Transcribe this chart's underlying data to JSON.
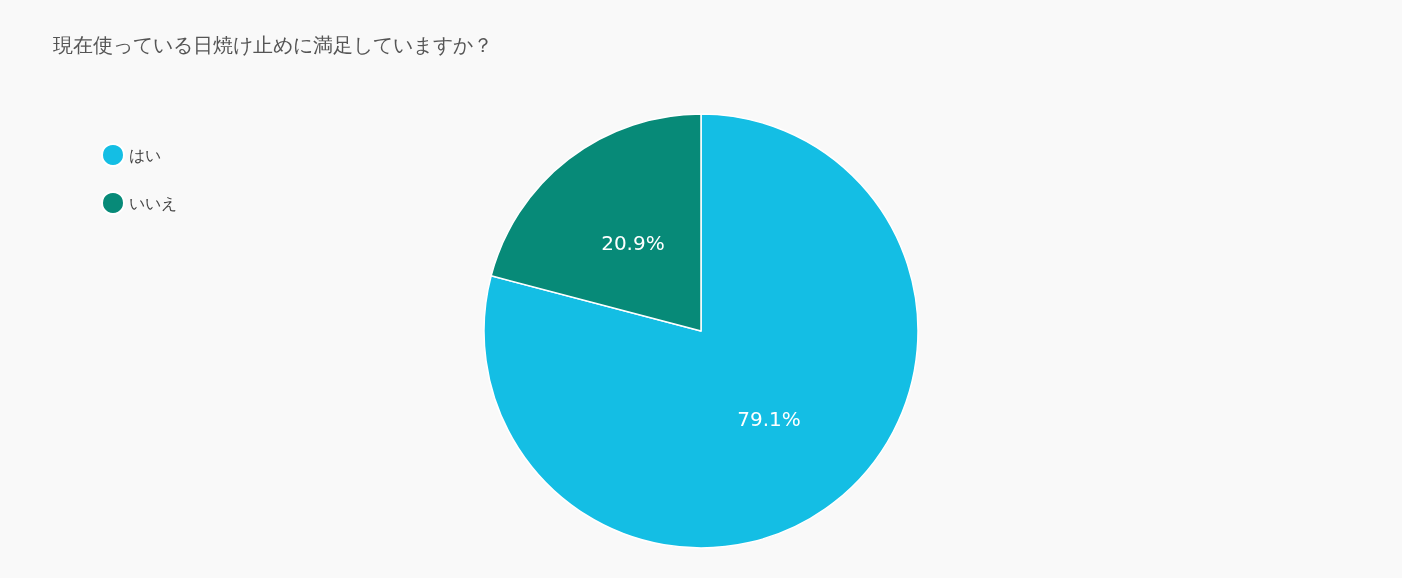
{
  "chart_data": {
    "type": "pie",
    "title": "現在使っている日焼け止めに満足していますか？",
    "categories": [
      "はい",
      "いいえ"
    ],
    "values": [
      79.1,
      20.9
    ],
    "colors": [
      "#14bee4",
      "#078a78"
    ],
    "value_labels": [
      "79.1%",
      "20.9%"
    ],
    "legend": "top left"
  }
}
